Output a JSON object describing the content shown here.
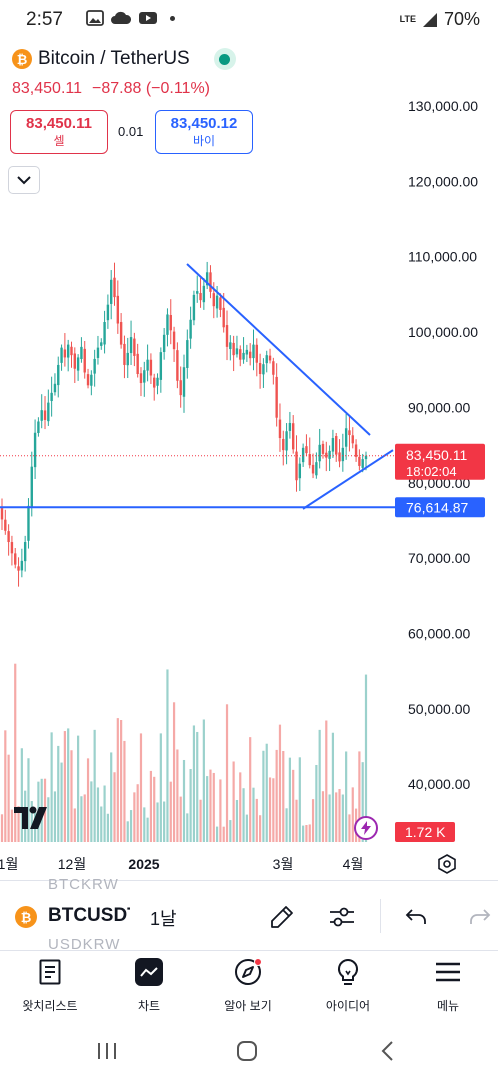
{
  "status_bar": {
    "time": "2:57",
    "network": "LTE",
    "battery": "70%"
  },
  "symbol": {
    "title": "Bitcoin / TetherUS",
    "price": "83,450.11",
    "change": "−87.88 (−0.11%)"
  },
  "trade": {
    "sell_price": "83,450.11",
    "sell_label": "셀",
    "spread": "0.01",
    "buy_price": "83,450.12",
    "buy_label": "바이"
  },
  "chart_data": {
    "type": "candlestick",
    "y_ticks": [
      130000,
      120000,
      110000,
      100000,
      90000,
      80000,
      70000,
      60000,
      50000,
      40000
    ],
    "y_tick_labels": [
      "130,000.00",
      "120,000.00",
      "110,000.00",
      "100,000.00",
      "90,000.00",
      "80,000.00",
      "70,000.00",
      "60,000.00",
      "50,000.00",
      "40,000.00"
    ],
    "x_labels": [
      "1월",
      "12월",
      "2025",
      "3월",
      "4월"
    ],
    "last_price": 83450.11,
    "last_price_label": "83,450.11",
    "countdown": "18:02:04",
    "support_level": 76614.87,
    "support_label": "76,614.87",
    "volume_label": "1.72 K",
    "series_closes": [
      75000,
      73500,
      72000,
      70500,
      69000,
      68200,
      69500,
      72000,
      76800,
      82000,
      86500,
      88000,
      89500,
      88200,
      90500,
      91800,
      93000,
      95500,
      97800,
      96500,
      98200,
      96800,
      95000,
      96500,
      97900,
      94500,
      92800,
      94200,
      96300,
      97800,
      98500,
      101200,
      103500,
      106800,
      104500,
      101000,
      98200,
      95500,
      97100,
      99200,
      96700,
      94300,
      93100,
      94800,
      96200,
      94100,
      92500,
      93800,
      97200,
      99500,
      102200,
      100100,
      97600,
      93400,
      91500,
      95200,
      98800,
      101500,
      104800,
      105300,
      104100,
      106000,
      107800,
      105200,
      103300,
      104700,
      102800,
      100500,
      97900,
      98500,
      96800,
      97700,
      96200,
      97100,
      97500,
      96400,
      98200,
      95800,
      94300,
      95600,
      96800,
      96100,
      94200,
      88500,
      85800,
      84200,
      86700,
      87800,
      84300,
      80200,
      82400,
      84500,
      83800,
      82200,
      81100,
      82600,
      84900,
      83700,
      83200,
      84100,
      85800,
      83600,
      82700,
      84500,
      87100,
      86200,
      85100,
      83300,
      82100,
      83000,
      83450
    ]
  },
  "toolbar": {
    "symbol": "BTCUSDT",
    "interval": "1날",
    "ghost_above": "BTCKRW",
    "ghost_below": "USDKRW"
  },
  "bottom_nav": {
    "items": [
      {
        "label": "왓치리스트"
      },
      {
        "label": "차트"
      },
      {
        "label": "알아 보기"
      },
      {
        "label": "아이디어"
      },
      {
        "label": "메뉴"
      }
    ]
  },
  "colors": {
    "up": "#26a69a",
    "down": "#ef5350",
    "up_volume": "#9bd1cc",
    "down_volume": "#f5a9a7",
    "drawing": "#2962ff",
    "last_price_bg": "#f23645"
  }
}
